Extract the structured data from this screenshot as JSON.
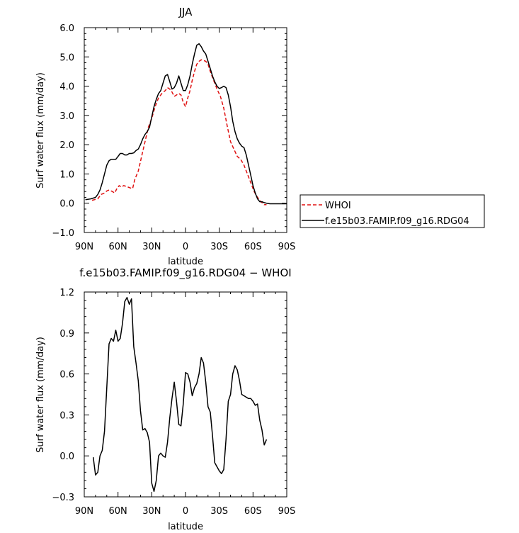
{
  "chart_data": [
    {
      "type": "line",
      "title": "JJA",
      "xlabel": "latitude",
      "ylabel": "Surf water flux (mm/day)",
      "xlim": [
        -90,
        90
      ],
      "ylim": [
        -1.0,
        6.0
      ],
      "x_ticks": [
        -90,
        -60,
        -30,
        0,
        30,
        60,
        90
      ],
      "x_tick_labels": [
        "90N",
        "60N",
        "30N",
        "0",
        "30S",
        "60S",
        "90S"
      ],
      "y_ticks": [
        -1,
        0,
        1,
        2,
        3,
        4,
        5,
        6
      ],
      "y_tick_labels": [
        "−1.0",
        "0.0",
        "1.0",
        "2.0",
        "3.0",
        "4.0",
        "5.0",
        "6.0"
      ],
      "legend_position": "right",
      "series": [
        {
          "name": "WHOI",
          "color": "#e01010",
          "dash": "dashed",
          "x": [
            -83,
            -78,
            -75,
            -72,
            -70,
            -68,
            -65,
            -63,
            -61,
            -59,
            -57,
            -55,
            -53,
            -51,
            -49,
            -47,
            -45,
            -42,
            -39,
            -36,
            -33,
            -30,
            -27,
            -24,
            -21,
            -18,
            -16,
            -14,
            -12,
            -10,
            -8,
            -6,
            -4,
            -2,
            0,
            2,
            4,
            6,
            8,
            10,
            12,
            14,
            16,
            18,
            20,
            22,
            25,
            28,
            31,
            34,
            37,
            40,
            43,
            46,
            49,
            52,
            55,
            58,
            61,
            64,
            67,
            70,
            72
          ],
          "y": [
            0.1,
            0.15,
            0.3,
            0.35,
            0.42,
            0.45,
            0.4,
            0.35,
            0.5,
            0.6,
            0.55,
            0.6,
            0.58,
            0.55,
            0.52,
            0.5,
            0.82,
            1.1,
            1.6,
            2.1,
            2.6,
            2.9,
            3.3,
            3.6,
            3.75,
            3.85,
            3.95,
            3.9,
            3.8,
            3.65,
            3.7,
            3.75,
            3.7,
            3.45,
            3.3,
            3.6,
            3.85,
            4.2,
            4.5,
            4.75,
            4.85,
            4.9,
            4.88,
            4.85,
            4.75,
            4.5,
            4.2,
            3.9,
            3.65,
            3.25,
            2.65,
            2.1,
            1.85,
            1.6,
            1.5,
            1.3,
            1.0,
            0.7,
            0.4,
            0.2,
            0.05,
            -0.05,
            -0.05
          ]
        },
        {
          "name": "f.e15b03.FAMIP.f09_g16.RDG04",
          "color": "#000000",
          "dash": "solid",
          "x": [
            -89,
            -84,
            -80,
            -78,
            -76,
            -74,
            -72,
            -70,
            -68,
            -66,
            -64,
            -62,
            -60,
            -58,
            -56,
            -54,
            -52,
            -50,
            -48,
            -46,
            -44,
            -42,
            -40,
            -38,
            -36,
            -34,
            -32,
            -30,
            -28,
            -26,
            -24,
            -22,
            -20,
            -18,
            -16,
            -14,
            -12,
            -10,
            -8,
            -6,
            -4,
            -2,
            0,
            2,
            4,
            6,
            8,
            10,
            12,
            14,
            16,
            18,
            20,
            22,
            24,
            26,
            28,
            30,
            32,
            34,
            36,
            38,
            40,
            42,
            44,
            46,
            48,
            50,
            52,
            54,
            56,
            58,
            60,
            62,
            64,
            66,
            68,
            70,
            72,
            75,
            80,
            85,
            90
          ],
          "y": [
            0.12,
            0.15,
            0.2,
            0.3,
            0.45,
            0.7,
            1.0,
            1.3,
            1.45,
            1.5,
            1.5,
            1.5,
            1.6,
            1.7,
            1.7,
            1.65,
            1.65,
            1.7,
            1.7,
            1.72,
            1.8,
            1.85,
            2.0,
            2.2,
            2.35,
            2.45,
            2.6,
            2.95,
            3.3,
            3.55,
            3.75,
            3.85,
            4.1,
            4.35,
            4.4,
            4.15,
            3.9,
            3.95,
            4.1,
            4.35,
            4.1,
            3.85,
            3.85,
            4.05,
            4.35,
            4.75,
            5.1,
            5.4,
            5.45,
            5.35,
            5.2,
            5.1,
            4.85,
            4.6,
            4.35,
            4.15,
            4.0,
            3.92,
            3.95,
            4.0,
            3.95,
            3.7,
            3.3,
            2.8,
            2.45,
            2.2,
            2.05,
            1.95,
            1.9,
            1.65,
            1.3,
            0.95,
            0.6,
            0.35,
            0.15,
            0.05,
            0.05,
            0.02,
            0.0,
            -0.02,
            -0.02,
            -0.02,
            -0.02
          ]
        }
      ]
    },
    {
      "type": "line",
      "title": "f.e15b03.FAMIP.f09_g16.RDG04 − WHOI",
      "xlabel": "latitude",
      "ylabel": "Surf water flux (mm/day)",
      "xlim": [
        -90,
        90
      ],
      "ylim": [
        -0.3,
        1.2
      ],
      "x_ticks": [
        -90,
        -60,
        -30,
        0,
        30,
        60,
        90
      ],
      "x_tick_labels": [
        "90N",
        "60N",
        "30N",
        "0",
        "30S",
        "60S",
        "90S"
      ],
      "y_ticks": [
        -0.3,
        0.0,
        0.3,
        0.6,
        0.9,
        1.2
      ],
      "y_tick_labels": [
        "−0.3",
        "0.0",
        "0.3",
        "0.6",
        "0.9",
        "1.2"
      ],
      "series": [
        {
          "color": "#000000",
          "dash": "solid",
          "x": [
            -82,
            -80,
            -78,
            -76,
            -74,
            -72,
            -70,
            -68,
            -66,
            -64,
            -62,
            -60,
            -58,
            -56,
            -54,
            -52,
            -50,
            -48,
            -46,
            -44,
            -42,
            -40,
            -38,
            -36,
            -34,
            -32,
            -30,
            -28,
            -26,
            -24,
            -22,
            -20,
            -18,
            -16,
            -14,
            -12,
            -10,
            -8,
            -6,
            -4,
            -2,
            0,
            2,
            4,
            6,
            8,
            10,
            12,
            14,
            16,
            18,
            20,
            22,
            24,
            26,
            28,
            30,
            32,
            34,
            36,
            38,
            40,
            42,
            44,
            46,
            48,
            50,
            52,
            54,
            56,
            58,
            60,
            62,
            64,
            66,
            68,
            70,
            72
          ],
          "y": [
            -0.01,
            -0.14,
            -0.12,
            0.0,
            0.04,
            0.18,
            0.5,
            0.82,
            0.86,
            0.84,
            0.92,
            0.84,
            0.86,
            0.97,
            1.13,
            1.16,
            1.11,
            1.15,
            0.8,
            0.68,
            0.55,
            0.33,
            0.19,
            0.2,
            0.17,
            0.1,
            -0.2,
            -0.26,
            -0.18,
            0.0,
            0.02,
            0.0,
            -0.01,
            0.1,
            0.28,
            0.42,
            0.54,
            0.4,
            0.23,
            0.22,
            0.38,
            0.61,
            0.6,
            0.54,
            0.44,
            0.5,
            0.53,
            0.6,
            0.72,
            0.68,
            0.54,
            0.36,
            0.32,
            0.15,
            -0.05,
            -0.08,
            -0.11,
            -0.13,
            -0.1,
            0.12,
            0.4,
            0.45,
            0.6,
            0.66,
            0.63,
            0.55,
            0.45,
            0.44,
            0.43,
            0.42,
            0.42,
            0.4,
            0.37,
            0.38,
            0.26,
            0.19,
            0.08,
            0.12
          ]
        }
      ]
    }
  ]
}
